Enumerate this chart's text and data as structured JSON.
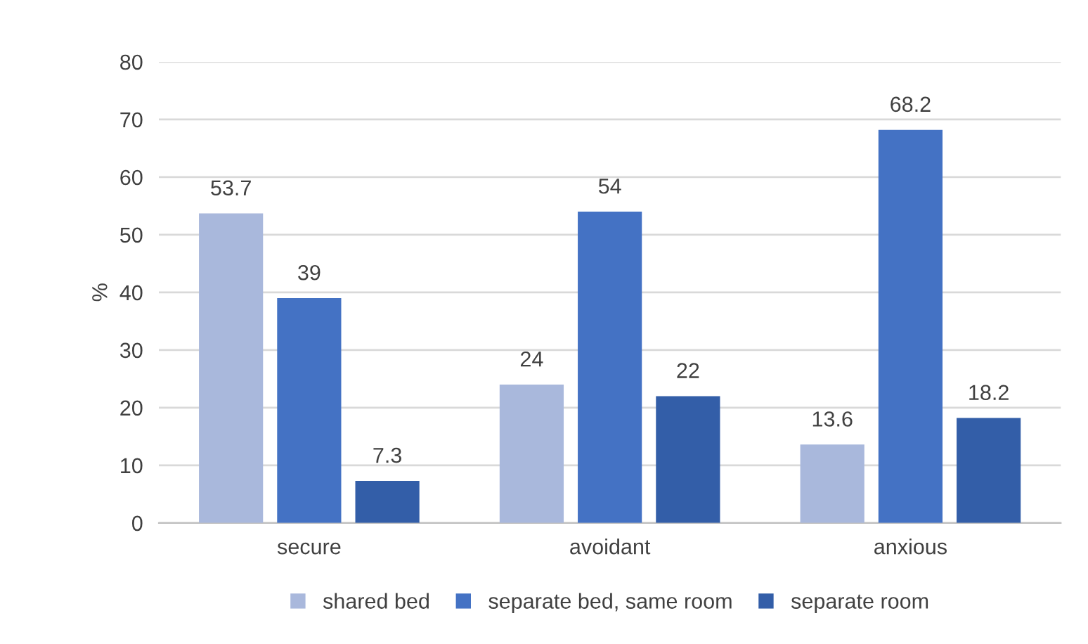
{
  "chart_data": {
    "type": "bar",
    "ylabel": "%",
    "categories": [
      "secure",
      "avoidant",
      "anxious"
    ],
    "series": [
      {
        "name": "shared bed",
        "color": "#a9b8dc",
        "values": [
          53.7,
          24,
          13.6
        ]
      },
      {
        "name": "separate bed, same room",
        "color": "#4472c4",
        "values": [
          39,
          54,
          68.2
        ]
      },
      {
        "name": "separate room",
        "color": "#335ea8",
        "values": [
          7.3,
          22,
          18.2
        ]
      }
    ],
    "ylim": [
      0,
      80
    ],
    "yticks": [
      0,
      10,
      20,
      30,
      40,
      50,
      60,
      70,
      80
    ],
    "grid": "y",
    "legend": "bottom",
    "data_labels": true
  }
}
